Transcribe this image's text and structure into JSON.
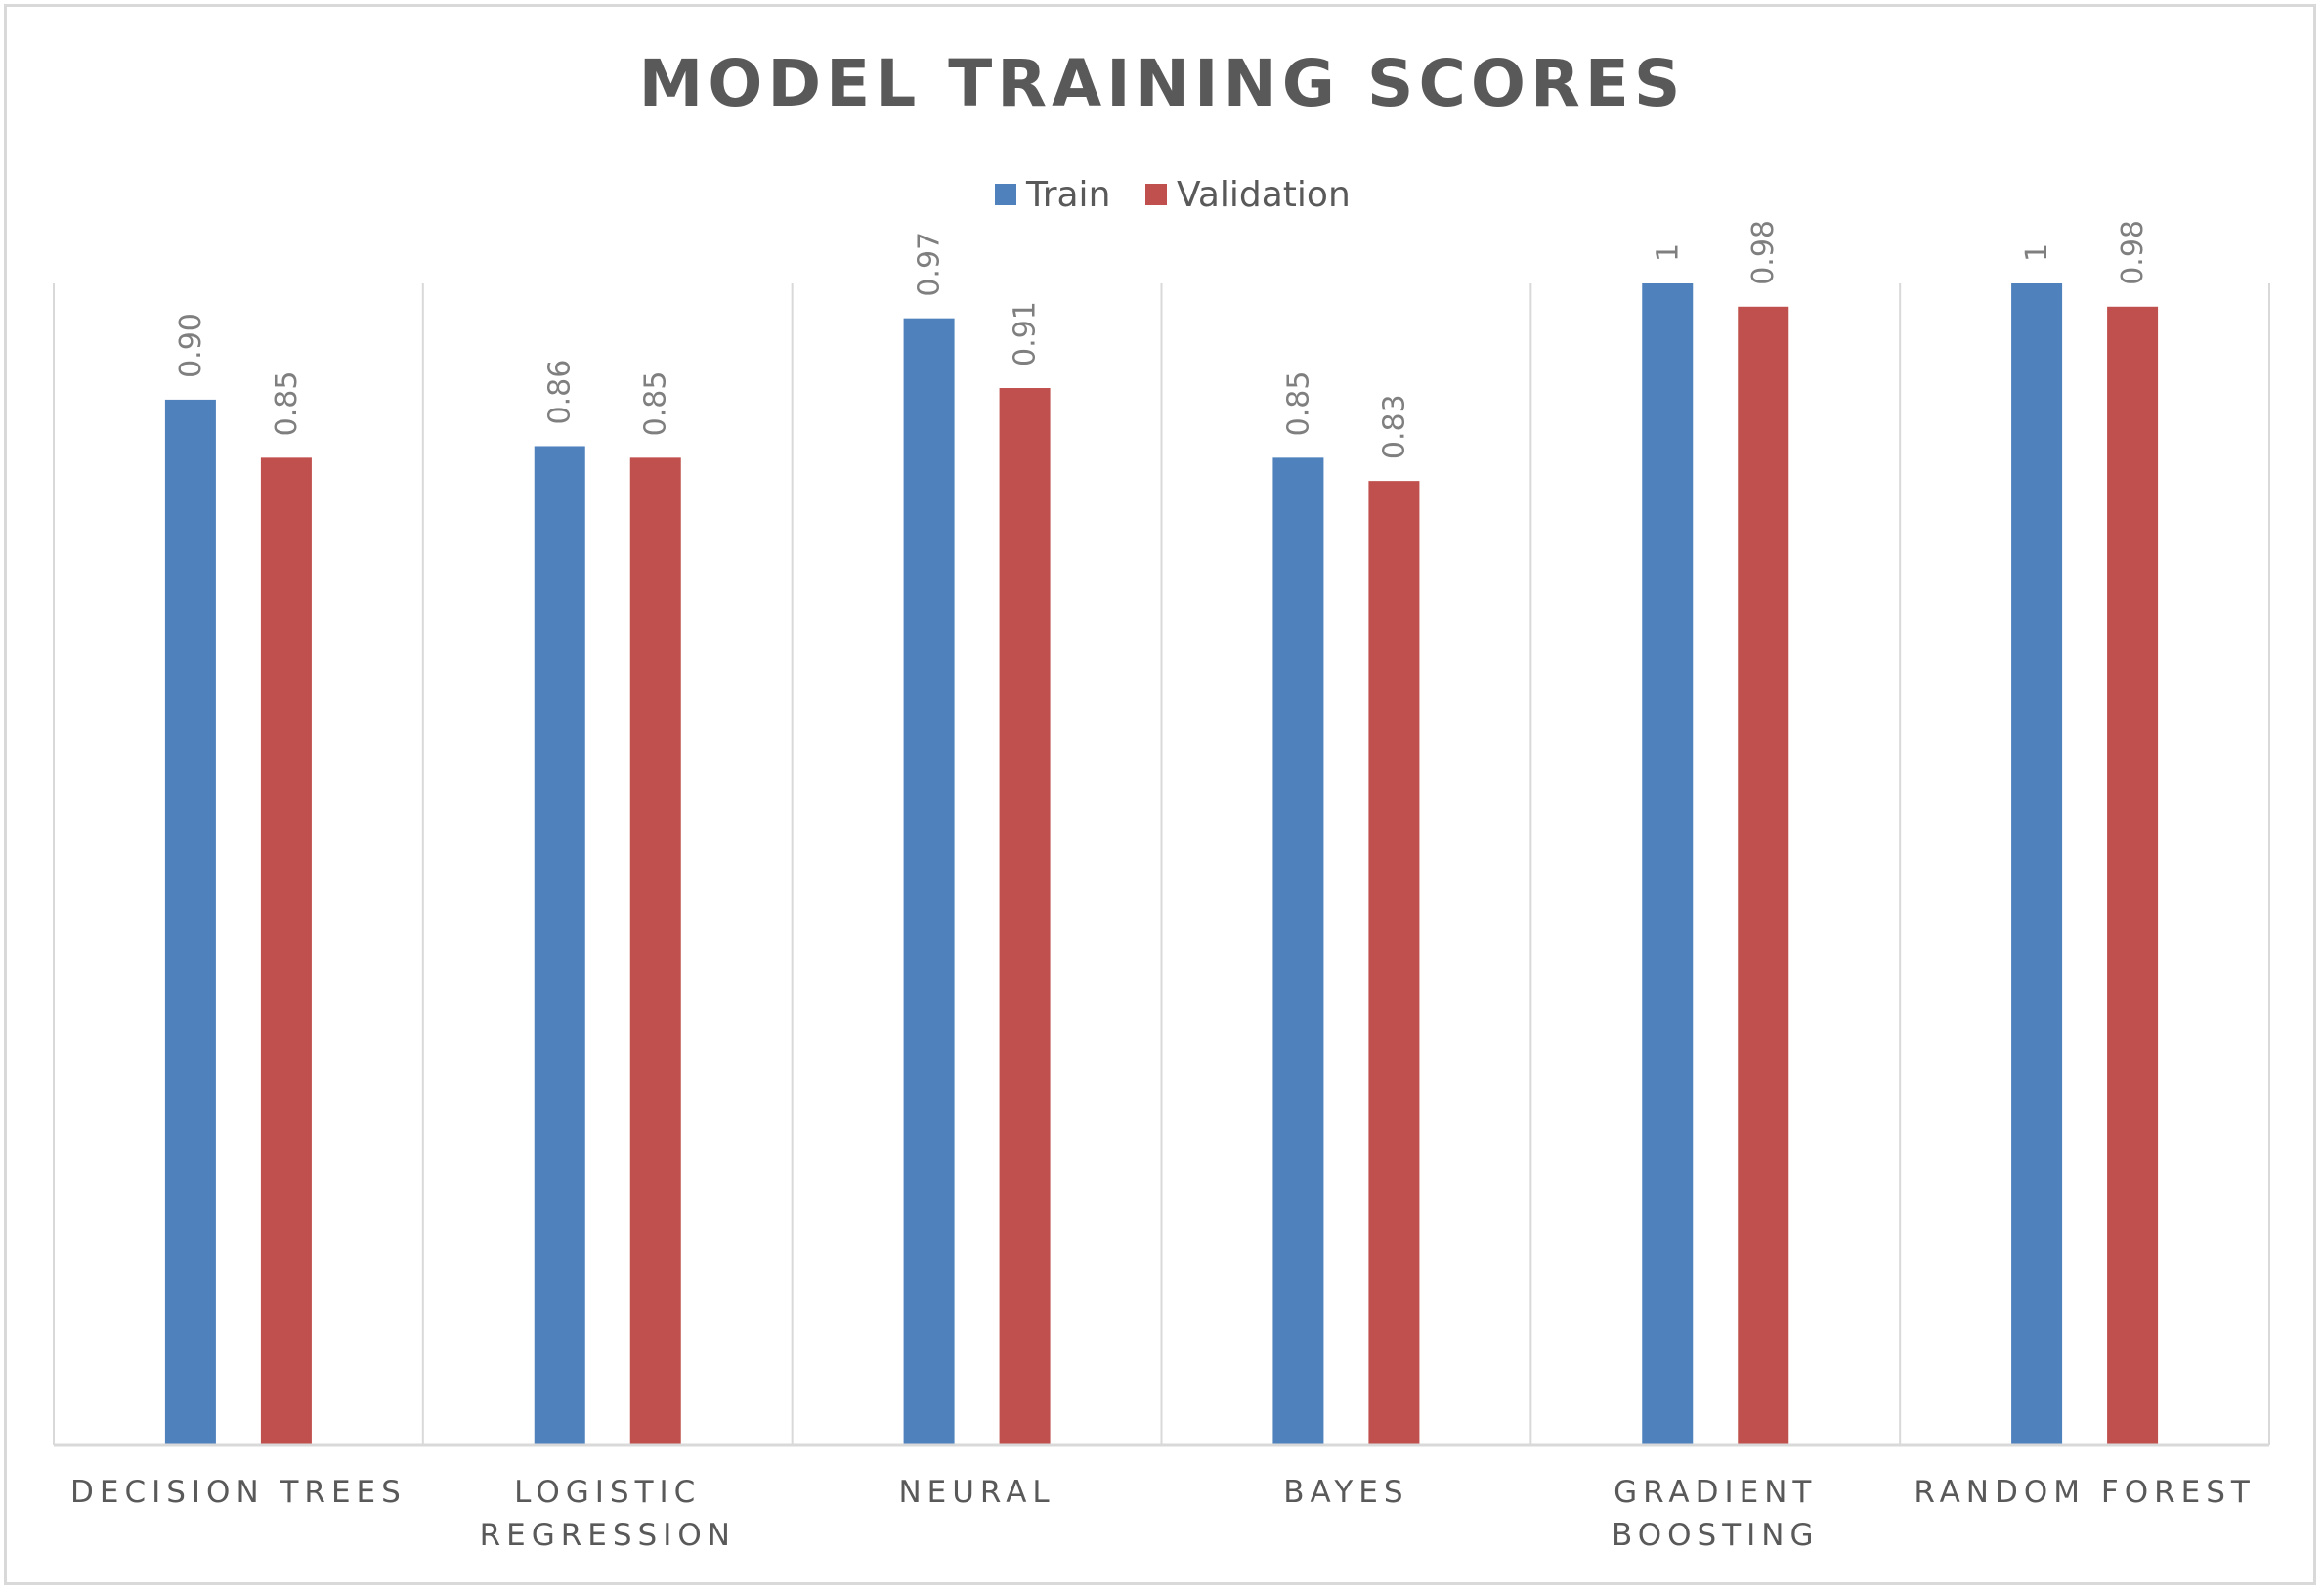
{
  "chart_data": {
    "type": "bar",
    "title": "MODEL TRAINING SCORES",
    "categories": [
      [
        "DECISION TREES"
      ],
      [
        "LOGISTIC",
        "REGRESSION"
      ],
      [
        "NEURAL"
      ],
      [
        "BAYES"
      ],
      [
        "GRADIENT",
        "BOOSTING"
      ],
      [
        "RANDOM FOREST"
      ]
    ],
    "series": [
      {
        "name": "Train",
        "color": "#4f81bd",
        "values": [
          0.9,
          0.86,
          0.97,
          0.85,
          1,
          1
        ],
        "labels": [
          "0.90",
          "0.86",
          "0.97",
          "0.85",
          "1",
          "1"
        ]
      },
      {
        "name": "Validation",
        "color": "#c0504d",
        "values": [
          0.85,
          0.85,
          0.91,
          0.83,
          0.98,
          0.98
        ],
        "labels": [
          "0.85",
          "0.85",
          "0.91",
          "0.83",
          "0.98",
          "0.98"
        ]
      }
    ],
    "ylim": [
      0,
      1
    ],
    "xlabel": "",
    "ylabel": "",
    "legend_position": "top-center",
    "grid": "vertical-category-separators",
    "data_labels": "rotated-vertical"
  }
}
